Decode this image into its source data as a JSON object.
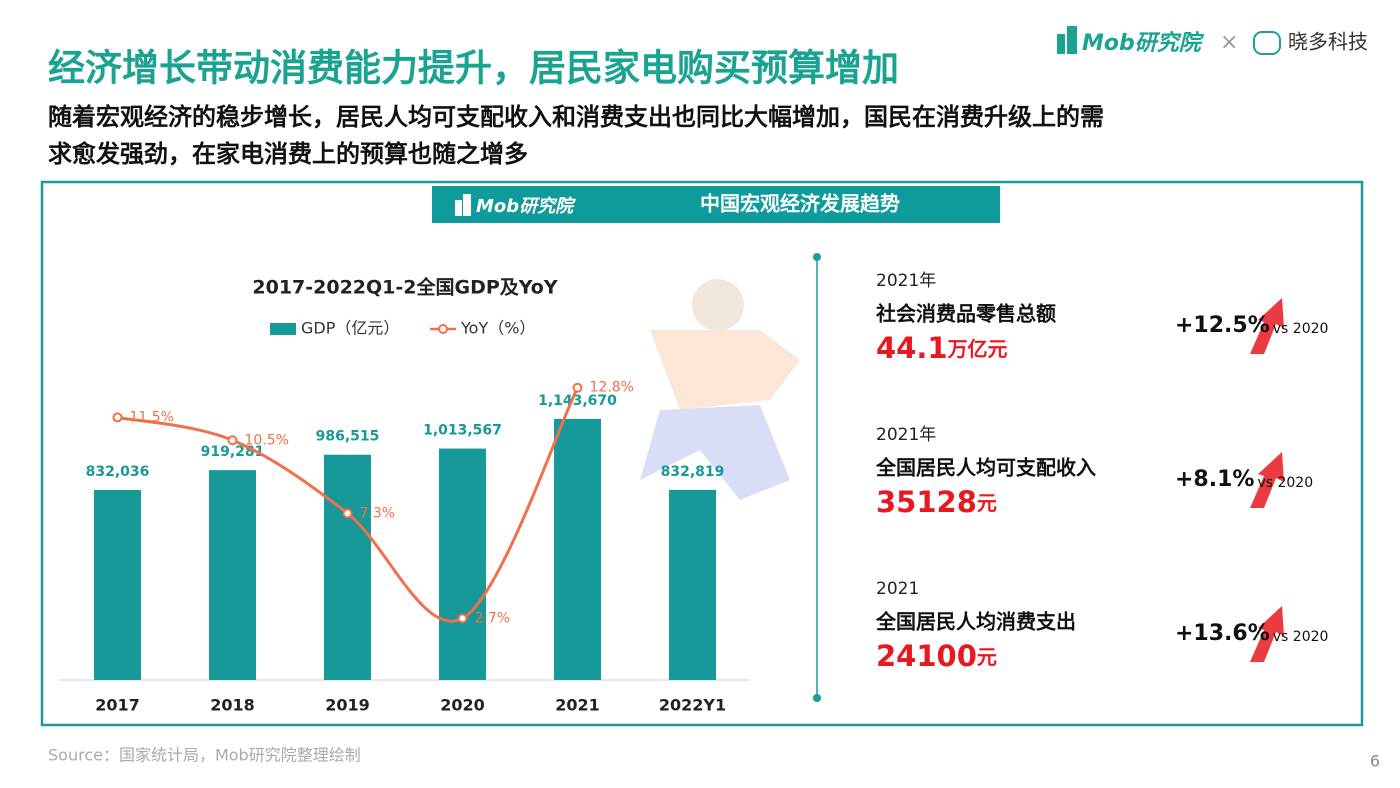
{
  "header": {
    "title": "经济增长带动消费能力提升，居民家电购买预算增加",
    "subtitle_lines": [
      "随着宏观经济的稳步增长，居民人均可支配收入和消费支出也同比大幅增加，国民在消费升级上的需",
      "求愈发强劲，在家电消费上的预算也随之增多"
    ]
  },
  "brand": {
    "logo": "Mob研究院",
    "separator": "×",
    "partner": "晓多科技"
  },
  "panel": {
    "logo": "Mob研究院",
    "title": "中国宏观经济发展趋势"
  },
  "chart_data": {
    "type": "bar",
    "title": "2017-2022Q1-2全国GDP及YoY",
    "categories": [
      "2017",
      "2018",
      "2019",
      "2020",
      "2021",
      "2022Y1"
    ],
    "series": [
      {
        "name": "GDP（亿元）",
        "type": "bar",
        "color": "#17999a",
        "values": [
          832036,
          919281,
          986515,
          1013567,
          1143670,
          832819
        ],
        "value_labels": [
          "832,036",
          "919,281",
          "986,515",
          "1,013,567",
          "1,143,670",
          "832,819"
        ]
      },
      {
        "name": "YoY（%）",
        "type": "line",
        "axis": "y2",
        "color": "#f0704a",
        "values": [
          11.5,
          10.5,
          7.3,
          2.7,
          12.8,
          null
        ],
        "value_labels": [
          "11.5%",
          "10.5%",
          "7.3%",
          "2.7%",
          "12.8%",
          null
        ]
      }
    ],
    "ylim": [
      0,
      1200000
    ],
    "y2lim": [
      0,
      12
    ]
  },
  "stats": [
    {
      "year": "2021年",
      "label": "社会消费品零售总额",
      "value": "44.1",
      "unit": "万亿元",
      "change": "+12.5%",
      "compare": "vs 2020"
    },
    {
      "year": "2021年",
      "label": "全国居民人均可支配收入",
      "value": "35128",
      "unit": "元",
      "change": "+8.1%",
      "compare": "vs 2020"
    },
    {
      "year": "2021",
      "label": "全国居民人均消费支出",
      "value": "24100",
      "unit": "元",
      "change": "+13.6%",
      "compare": "vs 2020"
    }
  ],
  "source": "Source：国家统计局，Mob研究院整理绘制",
  "page": "6"
}
